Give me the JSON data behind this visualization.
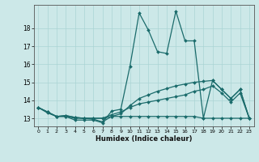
{
  "title": "",
  "xlabel": "Humidex (Indice chaleur)",
  "ylabel": "",
  "bg_color": "#cce8e8",
  "line_color": "#1a6b6b",
  "grid_color": "#aad4d4",
  "xlim": [
    -0.5,
    23.5
  ],
  "ylim": [
    12.55,
    19.3
  ],
  "yticks": [
    13,
    14,
    15,
    16,
    17,
    18
  ],
  "xticks": [
    0,
    1,
    2,
    3,
    4,
    5,
    6,
    7,
    8,
    9,
    10,
    11,
    12,
    13,
    14,
    15,
    16,
    17,
    18,
    19,
    20,
    21,
    22,
    23
  ],
  "line1_x": [
    0,
    1,
    2,
    3,
    4,
    5,
    6,
    7,
    8,
    9,
    10,
    11,
    12,
    13,
    14,
    15,
    16,
    17,
    18,
    19,
    20,
    21,
    22,
    23
  ],
  "line1_y": [
    13.6,
    13.3,
    13.1,
    13.1,
    12.9,
    12.9,
    12.9,
    12.75,
    13.4,
    13.5,
    15.9,
    18.85,
    17.9,
    16.7,
    16.6,
    18.95,
    17.3,
    17.3,
    13.0,
    15.1,
    14.6,
    14.1,
    14.6,
    13.0
  ],
  "line2_x": [
    0,
    1,
    2,
    3,
    4,
    5,
    6,
    7,
    8,
    9,
    10,
    11,
    12,
    13,
    14,
    15,
    16,
    17,
    18,
    19,
    20,
    21,
    22,
    23
  ],
  "line2_y": [
    13.6,
    13.35,
    13.1,
    13.1,
    13.0,
    13.0,
    13.0,
    13.0,
    13.1,
    13.1,
    13.1,
    13.1,
    13.1,
    13.1,
    13.1,
    13.1,
    13.1,
    13.1,
    13.0,
    13.0,
    13.0,
    13.0,
    13.0,
    13.0
  ],
  "line3_x": [
    0,
    1,
    2,
    3,
    4,
    5,
    6,
    7,
    8,
    9,
    10,
    11,
    12,
    13,
    14,
    15,
    16,
    17,
    18,
    19,
    20,
    21,
    22,
    23
  ],
  "line3_y": [
    13.6,
    13.35,
    13.1,
    13.15,
    13.05,
    13.0,
    13.0,
    13.0,
    13.2,
    13.35,
    13.6,
    13.8,
    13.9,
    14.0,
    14.1,
    14.2,
    14.3,
    14.5,
    14.6,
    14.8,
    14.4,
    13.9,
    14.4,
    13.0
  ],
  "line4_x": [
    0,
    1,
    2,
    3,
    4,
    5,
    6,
    7,
    8,
    9,
    10,
    11,
    12,
    13,
    14,
    15,
    16,
    17,
    18,
    19,
    20,
    21,
    22,
    23
  ],
  "line4_y": [
    13.6,
    13.35,
    13.1,
    13.15,
    13.05,
    13.0,
    12.95,
    12.8,
    13.1,
    13.25,
    13.7,
    14.1,
    14.3,
    14.5,
    14.65,
    14.8,
    14.9,
    15.0,
    15.05,
    15.1,
    14.6,
    14.1,
    14.6,
    13.0
  ]
}
